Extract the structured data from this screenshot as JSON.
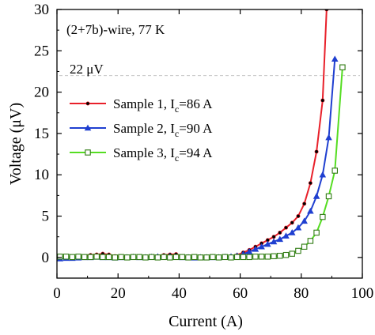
{
  "chart_data": {
    "type": "line",
    "xlabel": "Current (A)",
    "ylabel": "Voltage (μV)",
    "xlim": [
      0,
      100
    ],
    "ylim": [
      -2.5,
      30
    ],
    "xticks": [
      0,
      20,
      40,
      60,
      80,
      100
    ],
    "yticks": [
      0,
      5,
      10,
      15,
      20,
      25,
      30
    ],
    "grid": false,
    "legend_position": "center-left",
    "annotations": [
      {
        "text": "(2+7b)-wire,  77 K",
        "x": 2,
        "y": 27.3
      },
      {
        "text": "22 μV",
        "x": 2,
        "y": 22.3
      }
    ],
    "threshold_line": {
      "y": 22,
      "style": "dashed",
      "color": "#bbbbbb"
    },
    "series": [
      {
        "name": "Sample 1, I",
        "name_sub": "c",
        "name_suffix": "=86 A",
        "color": "#e8202a",
        "marker": "dot",
        "x": [
          1,
          3,
          5,
          7,
          9,
          11,
          13,
          15,
          17,
          19,
          21,
          23,
          25,
          27,
          29,
          31,
          33,
          35,
          37,
          39,
          41,
          43,
          45,
          47,
          49,
          51,
          53,
          55,
          57,
          59,
          61,
          63,
          65,
          67,
          69,
          71,
          73,
          75,
          77,
          79,
          81,
          83,
          85,
          87,
          88.3
        ],
        "y": [
          0.1,
          0.05,
          0.1,
          0.1,
          0.15,
          0.3,
          0.35,
          0.45,
          0.35,
          0.15,
          0.1,
          0.05,
          0.05,
          0.0,
          0.05,
          0.1,
          0.15,
          0.3,
          0.35,
          0.4,
          0.1,
          0.05,
          0.0,
          0.05,
          0.0,
          0.05,
          0.0,
          0.05,
          0.1,
          0.3,
          0.6,
          0.9,
          1.3,
          1.7,
          2.1,
          2.5,
          3.0,
          3.6,
          4.2,
          5.0,
          6.5,
          9.0,
          12.8,
          19.0,
          30.0
        ]
      },
      {
        "name": "Sample 2, I",
        "name_sub": "c",
        "name_suffix": "=90 A",
        "color": "#1f3fd0",
        "marker": "triangle",
        "x": [
          1,
          3,
          5,
          7,
          9,
          11,
          13,
          15,
          17,
          19,
          21,
          23,
          25,
          27,
          29,
          31,
          33,
          35,
          37,
          39,
          41,
          43,
          45,
          47,
          49,
          51,
          53,
          55,
          57,
          59,
          61,
          63,
          65,
          67,
          69,
          71,
          73,
          75,
          77,
          79,
          81,
          83,
          85,
          87,
          89,
          91
        ],
        "y": [
          -0.15,
          -0.1,
          -0.1,
          -0.05,
          0.0,
          0.0,
          0.05,
          0.0,
          0.0,
          -0.05,
          0.0,
          0.0,
          0.05,
          0.0,
          0.0,
          0.05,
          0.1,
          0.05,
          0.1,
          0.05,
          0.0,
          0.0,
          -0.05,
          0.0,
          0.0,
          0.0,
          0.0,
          0.05,
          0.1,
          0.2,
          0.4,
          0.7,
          1.0,
          1.3,
          1.6,
          1.9,
          2.2,
          2.6,
          3.0,
          3.6,
          4.4,
          5.6,
          7.4,
          10.0,
          14.5,
          24.0
        ]
      },
      {
        "name": "Sample 3, I",
        "name_sub": "c",
        "name_suffix": "=94 A",
        "color": "#55dd22",
        "marker": "square",
        "x": [
          1,
          3,
          5,
          7,
          9,
          11,
          13,
          15,
          17,
          19,
          21,
          23,
          25,
          27,
          29,
          31,
          33,
          35,
          37,
          39,
          41,
          43,
          45,
          47,
          49,
          51,
          53,
          55,
          57,
          59,
          61,
          63,
          65,
          67,
          69,
          71,
          73,
          75,
          77,
          79,
          81,
          83,
          85,
          87,
          89,
          91,
          93.5
        ],
        "y": [
          0.1,
          0.1,
          0.05,
          0.1,
          0.05,
          0.05,
          0.1,
          0.05,
          0.05,
          0.0,
          0.05,
          0.0,
          0.05,
          0.05,
          0.0,
          0.05,
          0.0,
          0.05,
          0.0,
          0.05,
          0.05,
          0.0,
          0.05,
          0.0,
          0.0,
          0.05,
          0.0,
          0.05,
          0.0,
          0.05,
          0.05,
          0.05,
          0.1,
          0.1,
          0.1,
          0.15,
          0.2,
          0.3,
          0.45,
          0.8,
          1.3,
          2.0,
          3.0,
          4.9,
          7.4,
          10.5,
          23.0
        ]
      }
    ]
  }
}
